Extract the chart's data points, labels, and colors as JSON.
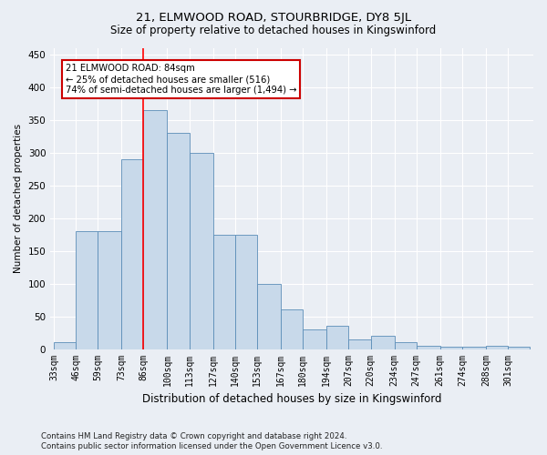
{
  "title1": "21, ELMWOOD ROAD, STOURBRIDGE, DY8 5JL",
  "title2": "Size of property relative to detached houses in Kingswinford",
  "xlabel": "Distribution of detached houses by size in Kingswinford",
  "ylabel": "Number of detached properties",
  "footnote1": "Contains HM Land Registry data © Crown copyright and database right 2024.",
  "footnote2": "Contains public sector information licensed under the Open Government Licence v3.0.",
  "annotation_line1": "21 ELMWOOD ROAD: 84sqm",
  "annotation_line2": "← 25% of detached houses are smaller (516)",
  "annotation_line3": "74% of semi-detached houses are larger (1,494) →",
  "bar_color": "#c8d9ea",
  "bar_edge_color": "#5b8db8",
  "red_line_x": 86,
  "annotation_box_color": "#ffffff",
  "annotation_box_edge": "#cc0000",
  "categories": [
    "33sqm",
    "46sqm",
    "59sqm",
    "73sqm",
    "86sqm",
    "100sqm",
    "113sqm",
    "127sqm",
    "140sqm",
    "153sqm",
    "167sqm",
    "180sqm",
    "194sqm",
    "207sqm",
    "220sqm",
    "234sqm",
    "247sqm",
    "261sqm",
    "274sqm",
    "288sqm",
    "301sqm"
  ],
  "bin_edges": [
    33,
    46,
    59,
    73,
    86,
    100,
    113,
    127,
    140,
    153,
    167,
    180,
    194,
    207,
    220,
    234,
    247,
    261,
    274,
    288,
    301,
    314
  ],
  "values": [
    10,
    180,
    180,
    290,
    365,
    330,
    300,
    175,
    175,
    100,
    60,
    30,
    35,
    15,
    20,
    10,
    5,
    3,
    3,
    5,
    3
  ],
  "ylim": [
    0,
    460
  ],
  "yticks": [
    0,
    50,
    100,
    150,
    200,
    250,
    300,
    350,
    400,
    450
  ],
  "background_color": "#eaeef4",
  "plot_bg_color": "#eaeef4",
  "grid_color": "#ffffff"
}
